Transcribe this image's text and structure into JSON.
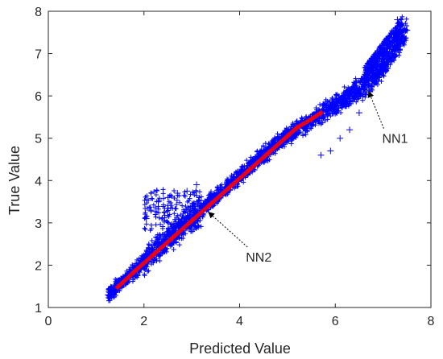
{
  "chart_data": {
    "type": "scatter",
    "title": "",
    "xlabel": "Predicted Value",
    "ylabel": "True Value",
    "xlim": [
      0,
      8
    ],
    "ylim": [
      1,
      8
    ],
    "xticks": [
      0,
      2,
      4,
      6,
      8
    ],
    "yticks": [
      1,
      2,
      3,
      4,
      5,
      6,
      7,
      8
    ],
    "grid": true,
    "series": [
      {
        "color": "#0000ff",
        "marker": "plus",
        "x": [
          1.25,
          1.4,
          1.6,
          1.8,
          2.0,
          2.2,
          2.4,
          2.6,
          2.8,
          3.0,
          3.2,
          3.4,
          3.6,
          3.8,
          4.0,
          4.2,
          4.4,
          4.6,
          4.8,
          5.0,
          5.2,
          5.4,
          5.6,
          5.8,
          6.0,
          6.2,
          6.4,
          6.6,
          6.8,
          7.0,
          7.2,
          7.4,
          7.5,
          2.05,
          2.15,
          2.3,
          2.5,
          2.7,
          2.9,
          3.1,
          5.7,
          5.9,
          6.1,
          6.3,
          6.5,
          6.9,
          7.1,
          7.3
        ],
        "y": [
          1.3,
          1.45,
          1.65,
          1.85,
          2.1,
          2.3,
          2.5,
          2.7,
          2.9,
          3.1,
          3.3,
          3.5,
          3.7,
          3.9,
          4.1,
          4.3,
          4.5,
          4.7,
          4.9,
          5.05,
          5.2,
          5.35,
          5.5,
          5.65,
          5.8,
          5.95,
          6.1,
          6.25,
          6.45,
          6.7,
          7.0,
          7.4,
          7.55,
          3.1,
          3.3,
          3.5,
          3.6,
          3.7,
          3.75,
          3.9,
          4.6,
          4.7,
          5.0,
          5.2,
          5.6,
          6.9,
          7.2,
          7.8
        ]
      },
      {
        "color": "#ff0000",
        "marker": "plus",
        "x": [
          1.45,
          1.8,
          2.2,
          2.6,
          3.0,
          3.4,
          3.8,
          4.2,
          4.6,
          5.0,
          5.2,
          5.5,
          5.7
        ],
        "y": [
          1.48,
          1.85,
          2.25,
          2.65,
          3.05,
          3.45,
          3.85,
          4.25,
          4.65,
          5.05,
          5.25,
          5.45,
          5.6
        ]
      }
    ],
    "annotations": [
      {
        "text": "NN1",
        "text_x": 7.25,
        "text_y": 5.0,
        "arrow_x": 6.7,
        "arrow_y": 6.1
      },
      {
        "text": "NN2",
        "text_x": 4.4,
        "text_y": 2.2,
        "arrow_x": 3.35,
        "arrow_y": 3.25
      }
    ]
  }
}
